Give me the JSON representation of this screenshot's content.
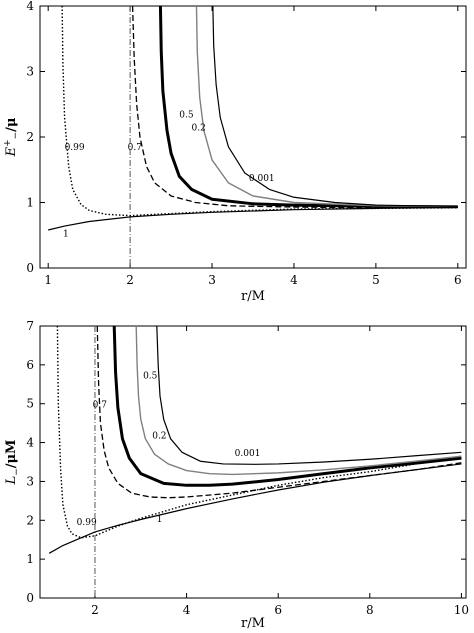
{
  "chart_data": [
    {
      "type": "line",
      "xlabel": "r/M",
      "ylabel": "E+−/μ",
      "ylabel_main": "E",
      "ylabel_sup": "+",
      "ylabel_sub": "−",
      "ylabel_tail": "/μ",
      "xlim": [
        0.9,
        6.1
      ],
      "ylim": [
        0,
        4
      ],
      "xticks": [
        "1",
        "2",
        "3",
        "4",
        "5",
        "6"
      ],
      "xtick_values": [
        1,
        2,
        3,
        4,
        5,
        6
      ],
      "yticks": [
        "0",
        "1",
        "2",
        "3",
        "4"
      ],
      "ytick_values": [
        0,
        1,
        2,
        3,
        4
      ],
      "grid": false,
      "series": [
        {
          "label": "0.99",
          "style": "dotted",
          "x": [
            1.17,
            1.18,
            1.2,
            1.25,
            1.3,
            1.4,
            1.5,
            1.7,
            2.0,
            2.5,
            3.0,
            4.0,
            5.0,
            6.0
          ],
          "y": [
            4.0,
            3.1,
            2.3,
            1.55,
            1.2,
            0.97,
            0.88,
            0.82,
            0.8,
            0.83,
            0.86,
            0.9,
            0.91,
            0.92
          ]
        },
        {
          "label": "0.7",
          "style": "dashed",
          "x": [
            2.03,
            2.05,
            2.08,
            2.12,
            2.2,
            2.3,
            2.5,
            2.8,
            3.2,
            4.0,
            5.0,
            6.0
          ],
          "y": [
            4.0,
            3.2,
            2.5,
            2.0,
            1.55,
            1.3,
            1.1,
            1.0,
            0.95,
            0.93,
            0.92,
            0.925
          ]
        },
        {
          "label": "0.5",
          "style": "thick",
          "x": [
            2.37,
            2.38,
            2.4,
            2.45,
            2.5,
            2.6,
            2.75,
            3.0,
            3.5,
            4.0,
            5.0,
            6.0
          ],
          "y": [
            4.0,
            3.3,
            2.7,
            2.1,
            1.75,
            1.4,
            1.2,
            1.05,
            0.98,
            0.96,
            0.94,
            0.935
          ]
        },
        {
          "label": "0.2",
          "style": "gray",
          "x": [
            2.81,
            2.82,
            2.85,
            2.9,
            3.0,
            3.2,
            3.5,
            4.0,
            5.0,
            6.0
          ],
          "y": [
            4.0,
            3.3,
            2.6,
            2.1,
            1.65,
            1.3,
            1.1,
            1.0,
            0.95,
            0.94
          ]
        },
        {
          "label": "0.001",
          "style": "solid",
          "x": [
            3.01,
            3.02,
            3.05,
            3.1,
            3.2,
            3.4,
            3.7,
            4.0,
            4.5,
            5.0,
            6.0
          ],
          "y": [
            4.0,
            3.4,
            2.8,
            2.3,
            1.85,
            1.45,
            1.2,
            1.08,
            1.0,
            0.96,
            0.94
          ]
        },
        {
          "label": "1",
          "style": "solid",
          "x": [
            1.0,
            1.2,
            1.5,
            2.0,
            2.5,
            3.0,
            4.0,
            5.0,
            6.0
          ],
          "y": [
            0.58,
            0.64,
            0.71,
            0.78,
            0.82,
            0.85,
            0.89,
            0.91,
            0.925
          ]
        }
      ],
      "vlines": [
        {
          "x": 2.0,
          "style": "dashdot"
        }
      ],
      "labels": [
        {
          "text": "0.99",
          "x": 1.2,
          "y": 1.8
        },
        {
          "text": "0.7",
          "x": 1.97,
          "y": 1.8
        },
        {
          "text": "0.5",
          "x": 2.6,
          "y": 2.3
        },
        {
          "text": "0.2",
          "x": 2.75,
          "y": 2.1
        },
        {
          "text": "0.001",
          "x": 3.45,
          "y": 1.33
        },
        {
          "text": "1",
          "x": 1.18,
          "y": 0.48
        }
      ]
    },
    {
      "type": "line",
      "xlabel": "r/M",
      "ylabel": "L−/μM",
      "ylabel_main": "L",
      "ylabel_sup": "",
      "ylabel_sub": "−",
      "ylabel_tail": "/μM",
      "xlim": [
        0.8,
        10.1
      ],
      "ylim": [
        0,
        7
      ],
      "xticks": [
        "2",
        "4",
        "6",
        "8",
        "10"
      ],
      "xtick_values": [
        2,
        4,
        6,
        8,
        10
      ],
      "yticks": [
        "0",
        "1",
        "2",
        "3",
        "4",
        "5",
        "6",
        "7"
      ],
      "ytick_values": [
        0,
        1,
        2,
        3,
        4,
        5,
        6,
        7
      ],
      "grid": false,
      "series": [
        {
          "label": "0.99",
          "style": "dotted",
          "x": [
            1.18,
            1.2,
            1.25,
            1.3,
            1.4,
            1.5,
            1.7,
            2.0,
            2.5,
            3.0,
            4.0,
            5.0,
            6.0,
            7.0,
            8.0,
            9.0,
            10.0
          ],
          "y": [
            7.0,
            5.0,
            3.3,
            2.4,
            1.85,
            1.65,
            1.55,
            1.6,
            1.85,
            2.05,
            2.4,
            2.65,
            2.9,
            3.1,
            3.25,
            3.45,
            3.6
          ]
        },
        {
          "label": "0.7",
          "style": "dashed",
          "x": [
            2.05,
            2.08,
            2.12,
            2.2,
            2.3,
            2.5,
            2.8,
            3.2,
            3.6,
            4.0,
            5.0,
            6.0,
            7.0,
            8.0,
            9.0,
            10.0
          ],
          "y": [
            7.0,
            5.5,
            4.5,
            3.8,
            3.35,
            2.95,
            2.7,
            2.6,
            2.58,
            2.6,
            2.7,
            2.85,
            3.0,
            3.15,
            3.3,
            3.48
          ]
        },
        {
          "label": "0.5",
          "style": "thick",
          "x": [
            2.42,
            2.45,
            2.5,
            2.6,
            2.75,
            3.0,
            3.5,
            4.0,
            4.5,
            5.0,
            6.0,
            7.0,
            8.0,
            9.0,
            10.0
          ],
          "y": [
            7.0,
            5.8,
            4.9,
            4.1,
            3.6,
            3.2,
            2.95,
            2.9,
            2.9,
            2.93,
            3.05,
            3.2,
            3.35,
            3.47,
            3.6
          ]
        },
        {
          "label": "0.2",
          "style": "gray",
          "x": [
            2.9,
            2.92,
            2.95,
            3.0,
            3.1,
            3.3,
            3.6,
            4.0,
            4.5,
            5.0,
            6.0,
            7.0,
            8.0,
            9.0,
            10.0
          ],
          "y": [
            7.0,
            6.0,
            5.2,
            4.6,
            4.1,
            3.7,
            3.45,
            3.28,
            3.2,
            3.18,
            3.22,
            3.3,
            3.4,
            3.52,
            3.65
          ]
        },
        {
          "label": "0.001",
          "style": "solid",
          "x": [
            3.35,
            3.38,
            3.42,
            3.5,
            3.65,
            3.9,
            4.3,
            4.8,
            5.5,
            6.0,
            7.0,
            8.0,
            9.0,
            10.0
          ],
          "y": [
            7.0,
            6.0,
            5.2,
            4.6,
            4.1,
            3.75,
            3.52,
            3.45,
            3.44,
            3.45,
            3.5,
            3.57,
            3.66,
            3.75
          ]
        },
        {
          "label": "1",
          "style": "solid",
          "x": [
            1.0,
            1.3,
            1.6,
            2.0,
            2.5,
            3.0,
            4.0,
            5.0,
            6.0,
            7.0,
            8.0,
            9.0,
            10.0
          ],
          "y": [
            1.15,
            1.35,
            1.5,
            1.7,
            1.87,
            2.02,
            2.3,
            2.55,
            2.78,
            2.98,
            3.15,
            3.3,
            3.45
          ]
        }
      ],
      "vlines": [
        {
          "x": 2.0,
          "style": "dashdot"
        }
      ],
      "labels": [
        {
          "text": "0.99",
          "x": 1.6,
          "y": 1.88
        },
        {
          "text": "0.7",
          "x": 1.95,
          "y": 4.9
        },
        {
          "text": "0.5",
          "x": 3.05,
          "y": 5.65
        },
        {
          "text": "0.2",
          "x": 3.25,
          "y": 4.1
        },
        {
          "text": "0.001",
          "x": 5.05,
          "y": 3.65
        },
        {
          "text": "1",
          "x": 3.35,
          "y": 1.95
        }
      ]
    }
  ]
}
